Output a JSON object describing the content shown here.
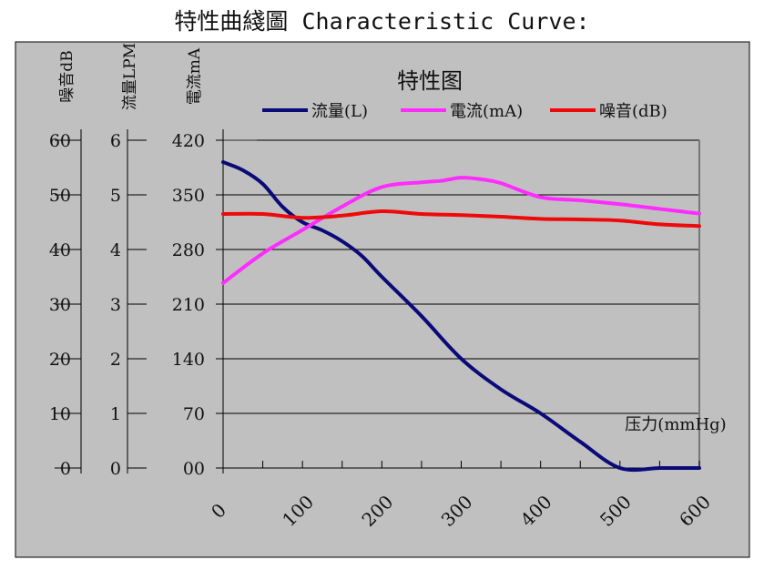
{
  "page_title": "特性曲綫圖 Characteristic Curve:",
  "chart_data": {
    "type": "line",
    "title": "特性图",
    "xlabel": "压力(mmHg)",
    "x_ticks": [
      "0",
      "100",
      "200",
      "300",
      "400",
      "500",
      "600"
    ],
    "xlim": [
      0,
      600
    ],
    "axes": [
      {
        "id": "noise",
        "label": "噪音dB",
        "ticks": [
          "0",
          "10",
          "20",
          "30",
          "40",
          "50",
          "60"
        ],
        "ylim": [
          0,
          60
        ]
      },
      {
        "id": "flow",
        "label": "流量LPM",
        "ticks": [
          "0",
          "1",
          "2",
          "3",
          "4",
          "5",
          "6"
        ],
        "ylim": [
          0,
          6
        ]
      },
      {
        "id": "current",
        "label": "電流mA",
        "ticks": [
          "00",
          "70",
          "140",
          "210",
          "280",
          "350",
          "420"
        ],
        "ylim": [
          0,
          420
        ]
      }
    ],
    "legend_position": "top",
    "grid": "horizontal",
    "series": [
      {
        "name": "流量(L)",
        "axis": "flow",
        "color": "#0a0a78",
        "x": [
          0,
          25,
          50,
          75,
          100,
          125,
          150,
          175,
          200,
          250,
          300,
          350,
          400,
          450,
          500,
          550,
          575,
          600
        ],
        "y": [
          5.6,
          5.45,
          5.2,
          4.78,
          4.5,
          4.35,
          4.15,
          3.88,
          3.5,
          2.78,
          2.0,
          1.44,
          1.0,
          0.48,
          0,
          0,
          0,
          0
        ]
      },
      {
        "name": "電流(mA)",
        "axis": "current",
        "color": "#ff2cff",
        "x": [
          0,
          50,
          100,
          150,
          200,
          250,
          275,
          300,
          325,
          350,
          400,
          450,
          500,
          550,
          575,
          600
        ],
        "y": [
          237,
          275,
          305,
          335,
          360,
          366,
          368,
          372,
          370,
          365,
          347,
          343,
          338,
          332,
          329,
          326
        ]
      },
      {
        "name": "噪音(dB)",
        "axis": "noise",
        "color": "#ee0a0a",
        "x": [
          0,
          50,
          100,
          150,
          200,
          250,
          300,
          350,
          400,
          450,
          500,
          550,
          600
        ],
        "y": [
          46.5,
          46.5,
          45.8,
          46.2,
          47,
          46.5,
          46.3,
          46.0,
          45.6,
          45.5,
          45.3,
          44.6,
          44.3
        ]
      }
    ]
  }
}
